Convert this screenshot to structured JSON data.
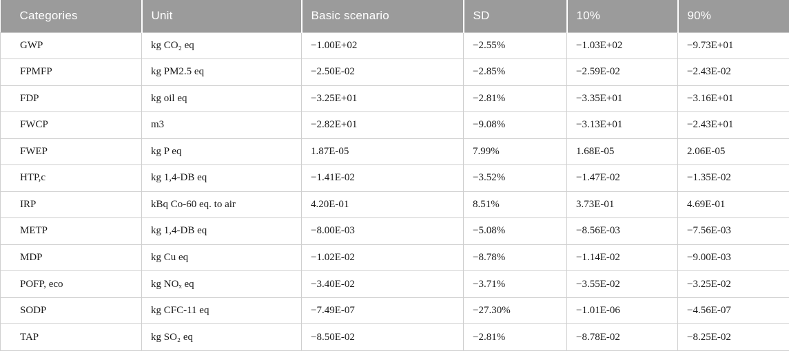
{
  "colors": {
    "header_bg": "#9b9b9b",
    "header_text": "#ffffff",
    "row_bg": "#ffffff",
    "body_text": "#1a1a1a",
    "border": "#cfcfcf"
  },
  "table": {
    "columns": [
      "Categories",
      "Unit",
      "Basic scenario",
      "SD",
      "10%",
      "90%"
    ],
    "rows": [
      [
        "GWP",
        "kg CO₂ eq",
        "−1.00E+02",
        "−2.55%",
        "−1.03E+02",
        "−9.73E+01"
      ],
      [
        "FPMFP",
        "kg PM2.5 eq",
        "−2.50E-02",
        "−2.85%",
        "−2.59E-02",
        "−2.43E-02"
      ],
      [
        "FDP",
        "kg oil eq",
        "−3.25E+01",
        "−2.81%",
        "−3.35E+01",
        "−3.16E+01"
      ],
      [
        "FWCP",
        "m3",
        "−2.82E+01",
        "−9.08%",
        "−3.13E+01",
        "−2.43E+01"
      ],
      [
        "FWEP",
        "kg P eq",
        "1.87E-05",
        "7.99%",
        "1.68E-05",
        "2.06E-05"
      ],
      [
        "HTP,c",
        "kg 1,4-DB eq",
        "−1.41E-02",
        "−3.52%",
        "−1.47E-02",
        "−1.35E-02"
      ],
      [
        "IRP",
        "kBq Co-60 eq. to air",
        "4.20E-01",
        "8.51%",
        "3.73E-01",
        "4.69E-01"
      ],
      [
        "METP",
        "kg 1,4-DB eq",
        "−8.00E-03",
        "−5.08%",
        "−8.56E-03",
        "−7.56E-03"
      ],
      [
        "MDP",
        "kg Cu eq",
        "−1.02E-02",
        "−8.78%",
        "−1.14E-02",
        "−9.00E-03"
      ],
      [
        "POFP, eco",
        "kg NOₓ eq",
        "−3.40E-02",
        "−3.71%",
        "−3.55E-02",
        "−3.25E-02"
      ],
      [
        "SODP",
        "kg CFC-11 eq",
        "−7.49E-07",
        "−27.30%",
        "−1.01E-06",
        "−4.56E-07"
      ],
      [
        "TAP",
        "kg SO₂ eq",
        "−8.50E-02",
        "−2.81%",
        "−8.78E-02",
        "−8.25E-02"
      ]
    ]
  }
}
